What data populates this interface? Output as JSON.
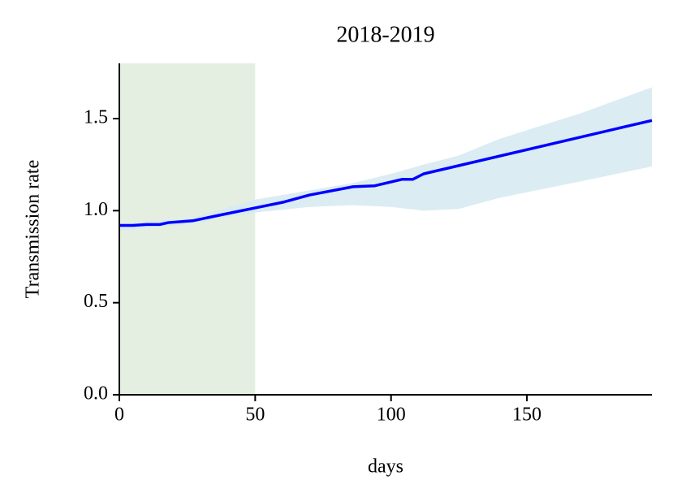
{
  "chart_data": {
    "type": "line",
    "title": "2018-2019",
    "xlabel": "days",
    "ylabel": "Transmission rate",
    "x": [
      0,
      5,
      10,
      15,
      18,
      27,
      40,
      50,
      60,
      70,
      86,
      94,
      104,
      108,
      112,
      196
    ],
    "series": [
      {
        "color": "#0000ff",
        "values": [
          0.92,
          0.92,
          0.925,
          0.925,
          0.935,
          0.945,
          0.985,
          1.015,
          1.045,
          1.085,
          1.13,
          1.135,
          1.17,
          1.17,
          1.2,
          1.49
        ]
      }
    ],
    "band": {
      "color": "#d7eaf2",
      "x": [
        0,
        27,
        50,
        70,
        86,
        100,
        112,
        125,
        140,
        170,
        196
      ],
      "upper": [
        0.93,
        0.96,
        1.06,
        1.11,
        1.15,
        1.2,
        1.25,
        1.3,
        1.39,
        1.53,
        1.67
      ],
      "lower": [
        0.89,
        0.93,
        0.99,
        1.02,
        1.03,
        1.02,
        1.0,
        1.01,
        1.07,
        1.16,
        1.24
      ]
    },
    "shaded_span": [
      0,
      50
    ],
    "shaded_color": "#e4efe1",
    "xlim": [
      0,
      196
    ],
    "ylim": [
      0,
      1.8
    ],
    "xticks": [
      0,
      50,
      100,
      150
    ],
    "yticks": [
      {
        "value": 0,
        "label": "0.0"
      },
      0.5,
      {
        "value": 1,
        "label": "1.0"
      },
      1.5
    ]
  }
}
